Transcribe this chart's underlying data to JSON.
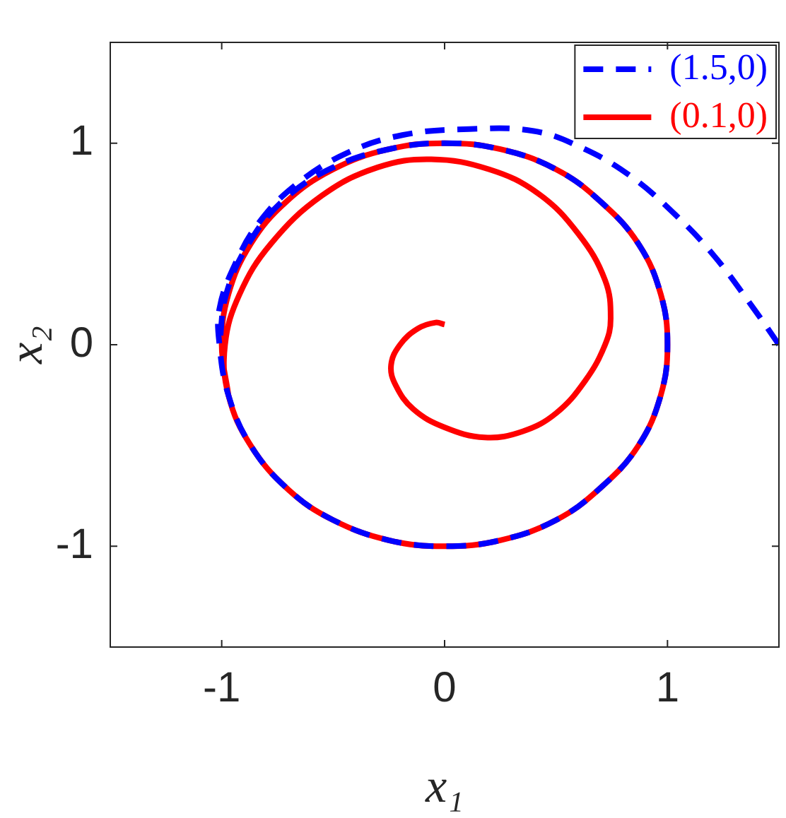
{
  "chart_data": {
    "type": "line",
    "xlabel": "x₁",
    "ylabel": "x₂",
    "xlim": [
      -1.5,
      1.5
    ],
    "ylim": [
      -1.5,
      1.5
    ],
    "xticks": [
      -1,
      0,
      1
    ],
    "yticks": [
      -1,
      0,
      1
    ],
    "grid": false,
    "legend": "top right",
    "marker": "none",
    "series": [
      {
        "name": "(0.1,0)",
        "color": "#ff0000",
        "line_style": "solid",
        "x": [
          0,
          -0.04,
          -0.12,
          -0.2,
          -0.24,
          -0.22,
          -0.14,
          0,
          0.18,
          0.35,
          0.5,
          0.63,
          0.72,
          0.745,
          0.72,
          0.6,
          0.42,
          0.2,
          -0.06,
          -0.3,
          -0.55,
          -0.78,
          -0.92,
          -0.985,
          -0.97,
          -0.87,
          -0.7,
          -0.5,
          -0.25,
          0,
          0.25,
          0.5,
          0.7,
          0.87,
          0.97,
          1,
          0.97,
          0.87,
          0.7,
          0.5,
          0.25,
          0,
          -0.25,
          -0.5,
          -0.71,
          -0.87,
          -0.97,
          -1,
          -0.97
        ],
        "values": [
          0.1,
          0.11,
          0.08,
          0,
          -0.1,
          -0.2,
          -0.32,
          -0.41,
          -0.46,
          -0.43,
          -0.34,
          -0.18,
          0,
          0.13,
          0.32,
          0.55,
          0.75,
          0.87,
          0.92,
          0.88,
          0.74,
          0.5,
          0.25,
          0,
          -0.25,
          -0.5,
          -0.72,
          -0.87,
          -0.97,
          -1,
          -0.97,
          -0.87,
          -0.71,
          -0.5,
          -0.25,
          0,
          0.25,
          0.5,
          0.71,
          0.87,
          0.97,
          1,
          0.97,
          0.87,
          0.71,
          0.5,
          0.25,
          0,
          -0.25
        ]
      },
      {
        "name": "(1.5,0)",
        "color": "#0000ff",
        "line_style": "dashed",
        "x": [
          1.5,
          1.38,
          1.21,
          1.04,
          0.83,
          0.61,
          0.4,
          0.11,
          -0.19,
          -0.44,
          -0.66,
          -0.83,
          -0.94,
          -1.01,
          -1.01,
          -0.97,
          -0.87,
          -0.7,
          -0.5,
          -0.25,
          0,
          0.25,
          0.5,
          0.7,
          0.87,
          0.97,
          1,
          0.97,
          0.87,
          0.7,
          0.5,
          0.25,
          0,
          -0.25,
          -0.5,
          -0.72,
          -0.88,
          -0.98,
          -1.01
        ],
        "values": [
          0,
          0.19,
          0.44,
          0.64,
          0.84,
          0.98,
          1.06,
          1.07,
          1.04,
          0.95,
          0.8,
          0.61,
          0.4,
          0.18,
          0,
          -0.25,
          -0.5,
          -0.72,
          -0.87,
          -0.97,
          -1,
          -0.97,
          -0.87,
          -0.71,
          -0.5,
          -0.25,
          0,
          0.25,
          0.5,
          0.71,
          0.87,
          0.97,
          1,
          0.97,
          0.88,
          0.72,
          0.5,
          0.25,
          0
        ]
      }
    ]
  }
}
